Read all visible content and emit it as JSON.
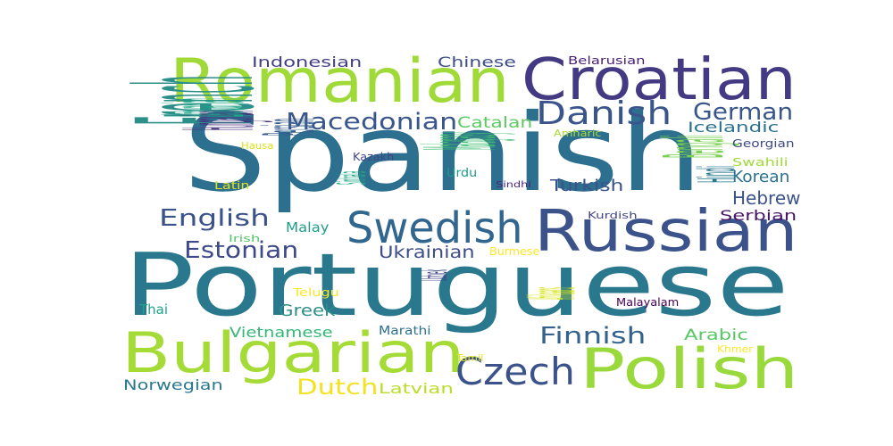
{
  "words": [
    {
      "text": "Spanish",
      "color": "#2c6f8e"
    },
    {
      "text": "Portuguese",
      "color": "#2a788e"
    },
    {
      "text": "Russian",
      "color": "#3b528b"
    },
    {
      "text": "Romanian",
      "color": "#a0da39"
    },
    {
      "text": "Croatian",
      "color": "#443a83"
    },
    {
      "text": "Polish",
      "color": "#9ad93c"
    },
    {
      "text": "Bulgarian",
      "color": "#a5db36"
    },
    {
      "text": "French",
      "color": "#2c8f89"
    },
    {
      "text": "Swedish",
      "color": "#31668e"
    },
    {
      "text": "Czech",
      "color": "#3b528b"
    },
    {
      "text": "Danish",
      "color": "#3a548c"
    },
    {
      "text": "Macedonian",
      "color": "#39568c"
    },
    {
      "text": "German",
      "color": "#39568c"
    },
    {
      "text": "English",
      "color": "#3b528b"
    },
    {
      "text": "Estonian",
      "color": "#3e4a89"
    },
    {
      "text": "Finnish",
      "color": "#33638d"
    },
    {
      "text": "Ukrainian",
      "color": "#3e4c8a"
    },
    {
      "text": "Dutch",
      "color": "#f3e21f"
    },
    {
      "text": "Bengali",
      "color": "#7ad151"
    },
    {
      "text": "Hebrew",
      "color": "#3b528b"
    },
    {
      "text": "Korean",
      "color": "#2c728e"
    },
    {
      "text": "Turkish",
      "color": "#3b528b"
    },
    {
      "text": "Serbian",
      "color": "#481668"
    },
    {
      "text": "Arabic",
      "color": "#58c765"
    },
    {
      "text": "Greek",
      "color": "#2c8f89"
    },
    {
      "text": "Norwegian",
      "color": "#2a788e"
    },
    {
      "text": "Vietnamese",
      "color": "#35b779"
    },
    {
      "text": "Latvian",
      "color": "#b8de29"
    },
    {
      "text": "Indonesian",
      "color": "#433e85"
    },
    {
      "text": "Chinese",
      "color": "#3d4d8a"
    },
    {
      "text": "Catalan",
      "color": "#5ec962"
    },
    {
      "text": "Hungarian",
      "color": "#46307e"
    },
    {
      "text": "Lithuanian",
      "color": "#20a386"
    },
    {
      "text": "Persian",
      "color": "#365c8d"
    },
    {
      "text": "Malagasy",
      "color": "#40bd72"
    },
    {
      "text": "Icelandic",
      "color": "#2c728e"
    },
    {
      "text": "Hindi",
      "color": "#2a788e"
    },
    {
      "text": "Belarusian",
      "color": "#481f70"
    },
    {
      "text": "Malay",
      "color": "#1f9e89"
    },
    {
      "text": "Thai",
      "color": "#1fa088"
    },
    {
      "text": "Hausa",
      "color": "#dde318"
    },
    {
      "text": "Latin",
      "color": "#e5e419"
    },
    {
      "text": "Irish",
      "color": "#52c569"
    },
    {
      "text": "Sinhala",
      "color": "#22a884"
    },
    {
      "text": "Kazakh",
      "color": "#414487"
    },
    {
      "text": "Urdu",
      "color": "#1e9b8a"
    },
    {
      "text": "Sindhi",
      "color": "#482576"
    },
    {
      "text": "Amharic",
      "color": "#a8db34"
    },
    {
      "text": "Georgian",
      "color": "#3e4a89"
    },
    {
      "text": "Swahili",
      "color": "#a0da39"
    },
    {
      "text": "Kurdish",
      "color": "#414487"
    },
    {
      "text": "Burmese",
      "color": "#fde725"
    },
    {
      "text": "Telugu",
      "color": "#fde725"
    },
    {
      "text": "Uzbek",
      "color": "#3f4788"
    },
    {
      "text": "Afrikaans",
      "color": "#d8e219"
    },
    {
      "text": "Malayalam",
      "color": "#440154"
    },
    {
      "text": "Marathi",
      "color": "#2d708e"
    },
    {
      "text": "Tamil",
      "color": "#e2e418"
    },
    {
      "text": "Khmer",
      "color": "#fde725"
    }
  ]
}
